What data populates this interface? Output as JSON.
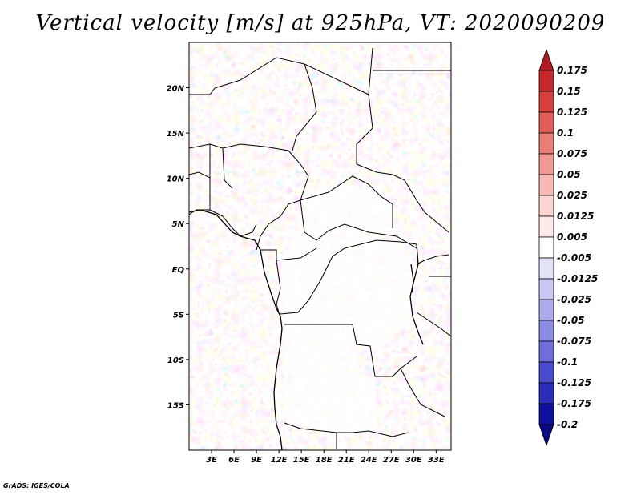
{
  "title": "Vertical velocity [m/s] at 925hPa, VT: 2020090209",
  "credit": "GrADS: IGES/COLA",
  "map": {
    "lon_range": [
      0,
      35
    ],
    "lat_range": [
      -20,
      25
    ],
    "lon_ticks": [
      {
        "value": 3,
        "label": "3E"
      },
      {
        "value": 6,
        "label": "6E"
      },
      {
        "value": 9,
        "label": "9E"
      },
      {
        "value": 12,
        "label": "12E"
      },
      {
        "value": 15,
        "label": "15E"
      },
      {
        "value": 18,
        "label": "18E"
      },
      {
        "value": 21,
        "label": "21E"
      },
      {
        "value": 24,
        "label": "24E"
      },
      {
        "value": 27,
        "label": "27E"
      },
      {
        "value": 30,
        "label": "30E"
      },
      {
        "value": 33,
        "label": "33E"
      }
    ],
    "lat_ticks": [
      {
        "value": 20,
        "label": "20N"
      },
      {
        "value": 15,
        "label": "15N"
      },
      {
        "value": 10,
        "label": "10N"
      },
      {
        "value": 5,
        "label": "5N"
      },
      {
        "value": 0,
        "label": "EQ"
      },
      {
        "value": -5,
        "label": "5S"
      },
      {
        "value": -10,
        "label": "10S"
      },
      {
        "value": -15,
        "label": "15S"
      }
    ]
  },
  "colorbar": {
    "labels": [
      "0.175",
      "0.15",
      "0.125",
      "0.1",
      "0.075",
      "0.05",
      "0.025",
      "0.0125",
      "0.005",
      "-0.005",
      "-0.0125",
      "-0.025",
      "-0.05",
      "-0.075",
      "-0.1",
      "-0.125",
      "-0.175",
      "-0.2"
    ],
    "colors": [
      "#b01c24",
      "#c8282c",
      "#d8403e",
      "#e45e58",
      "#ec7c76",
      "#f29894",
      "#f8b8b4",
      "#fcd4d0",
      "#fdeae8",
      "#ffffff",
      "#e2e2f8",
      "#c8c8f2",
      "#aaaaec",
      "#8c8ce4",
      "#6e6edc",
      "#4a4ad0",
      "#2c2cba",
      "#1010a0",
      "#0a0a80"
    ],
    "unit": "m/s"
  }
}
